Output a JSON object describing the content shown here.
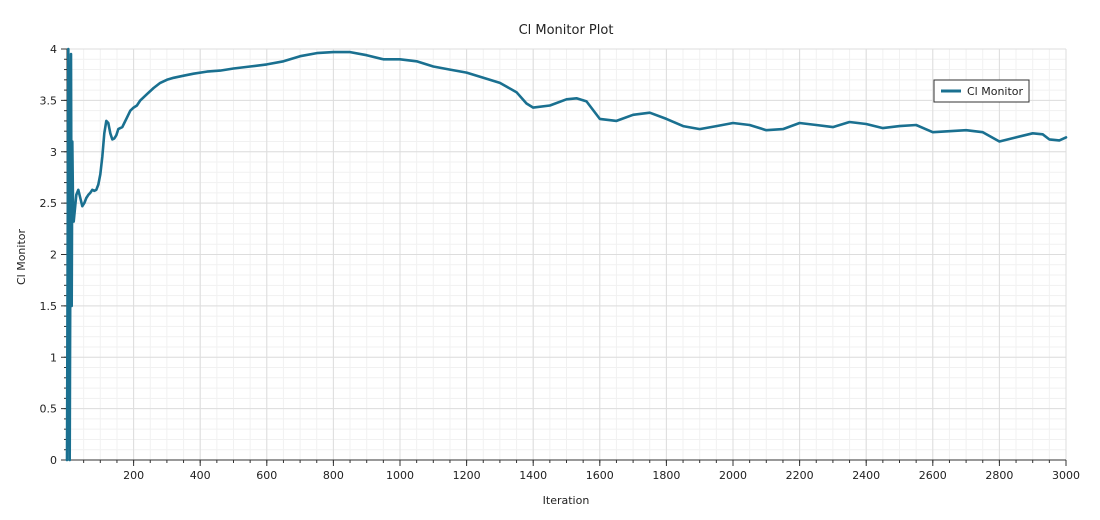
{
  "chart_data": {
    "type": "line",
    "title": "Cl Monitor Plot",
    "xlabel": "Iteration",
    "ylabel": "Cl Monitor",
    "xlim": [
      0,
      3000
    ],
    "ylim": [
      0,
      4
    ],
    "x_major_ticks": [
      200,
      400,
      600,
      800,
      1000,
      1200,
      1400,
      1600,
      1800,
      2000,
      2200,
      2400,
      2600,
      2800,
      3000
    ],
    "x_tick_labels": [
      "200",
      "400",
      "600",
      "800",
      "1000",
      "1200",
      "1400",
      "1600",
      "1800",
      "2000",
      "2200",
      "2400",
      "2600",
      "2800",
      "3000"
    ],
    "y_major_ticks": [
      0,
      0.5,
      1,
      1.5,
      2,
      2.5,
      3,
      3.5,
      4
    ],
    "y_tick_labels": [
      "0",
      "0.5",
      "1",
      "1.5",
      "2",
      "2.5",
      "3",
      "3.5",
      "4"
    ],
    "grid": true,
    "legend_position": "top-right",
    "series": [
      {
        "name": "Cl Monitor",
        "color": "#1a7090",
        "x": [
          0,
          4,
          8,
          12,
          14,
          16,
          18,
          20,
          24,
          28,
          34,
          40,
          46,
          52,
          58,
          64,
          70,
          76,
          82,
          88,
          94,
          100,
          106,
          112,
          118,
          124,
          130,
          136,
          142,
          148,
          154,
          160,
          166,
          172,
          178,
          184,
          190,
          200,
          210,
          220,
          240,
          260,
          280,
          300,
          320,
          350,
          380,
          420,
          460,
          500,
          550,
          600,
          650,
          700,
          750,
          800,
          850,
          900,
          950,
          1000,
          1050,
          1100,
          1150,
          1200,
          1250,
          1300,
          1350,
          1380,
          1400,
          1450,
          1500,
          1530,
          1560,
          1600,
          1650,
          1700,
          1750,
          1800,
          1850,
          1900,
          1950,
          2000,
          2050,
          2100,
          2150,
          2200,
          2250,
          2300,
          2350,
          2400,
          2450,
          2500,
          2550,
          2600,
          2650,
          2700,
          2750,
          2800,
          2850,
          2900,
          2930,
          2950,
          2980,
          3000
        ],
        "values": [
          0.0,
          4.0,
          0.0,
          3.95,
          1.5,
          3.1,
          2.5,
          2.32,
          2.45,
          2.58,
          2.63,
          2.55,
          2.47,
          2.5,
          2.55,
          2.58,
          2.6,
          2.63,
          2.62,
          2.63,
          2.68,
          2.78,
          2.95,
          3.18,
          3.3,
          3.28,
          3.18,
          3.12,
          3.13,
          3.16,
          3.22,
          3.23,
          3.24,
          3.28,
          3.32,
          3.36,
          3.4,
          3.43,
          3.45,
          3.5,
          3.56,
          3.62,
          3.67,
          3.7,
          3.72,
          3.74,
          3.76,
          3.78,
          3.79,
          3.81,
          3.83,
          3.85,
          3.88,
          3.93,
          3.96,
          3.97,
          3.97,
          3.94,
          3.9,
          3.9,
          3.88,
          3.83,
          3.8,
          3.77,
          3.72,
          3.67,
          3.58,
          3.47,
          3.43,
          3.45,
          3.51,
          3.52,
          3.49,
          3.32,
          3.3,
          3.36,
          3.38,
          3.32,
          3.25,
          3.22,
          3.25,
          3.28,
          3.26,
          3.21,
          3.22,
          3.28,
          3.26,
          3.24,
          3.29,
          3.27,
          3.23,
          3.25,
          3.26,
          3.19,
          3.2,
          3.21,
          3.19,
          3.1,
          3.14,
          3.18,
          3.17,
          3.12,
          3.11,
          3.14
        ]
      }
    ]
  }
}
